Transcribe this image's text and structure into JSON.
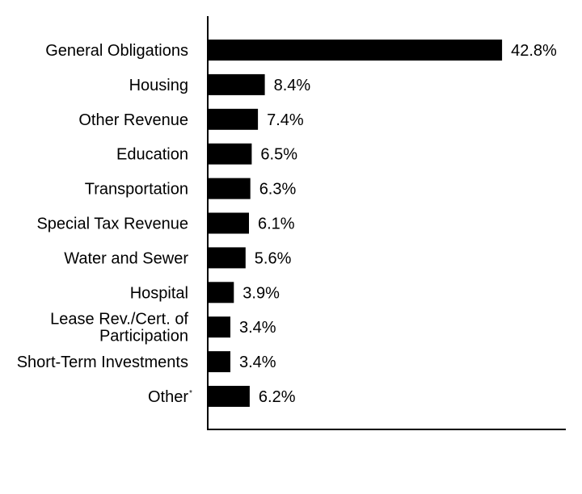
{
  "chart_data": {
    "type": "bar",
    "orientation": "horizontal",
    "title": "",
    "xlabel": "",
    "ylabel": "",
    "categories": [
      "General Obligations",
      "Housing",
      "Other Revenue",
      "Education",
      "Transportation",
      "Special Tax Revenue",
      "Water and Sewer",
      "Hospital",
      "Lease Rev./Cert. of Participation",
      "Short-Term Investments",
      "Other"
    ],
    "category_lines": [
      [
        "General Obligations"
      ],
      [
        "Housing"
      ],
      [
        "Other Revenue"
      ],
      [
        "Education"
      ],
      [
        "Transportation"
      ],
      [
        "Special Tax Revenue"
      ],
      [
        "Water and Sewer"
      ],
      [
        "Hospital"
      ],
      [
        "Lease Rev./Cert. of",
        "Participation"
      ],
      [
        "Short-Term Investments"
      ],
      [
        "Other"
      ]
    ],
    "footnote_marks": [
      "",
      "",
      "",
      "",
      "",
      "",
      "",
      "",
      "",
      "",
      "*"
    ],
    "values": [
      42.8,
      8.4,
      7.4,
      6.5,
      6.3,
      6.1,
      5.6,
      3.9,
      3.4,
      3.4,
      6.2
    ],
    "value_labels": [
      "42.8%",
      "8.4%",
      "7.4%",
      "6.5%",
      "6.3%",
      "6.1%",
      "5.6%",
      "3.9%",
      "3.4%",
      "3.4%",
      "6.2%"
    ],
    "xlim": [
      0,
      51
    ],
    "grid": false,
    "legend": "none",
    "bar_color": "#000000"
  }
}
